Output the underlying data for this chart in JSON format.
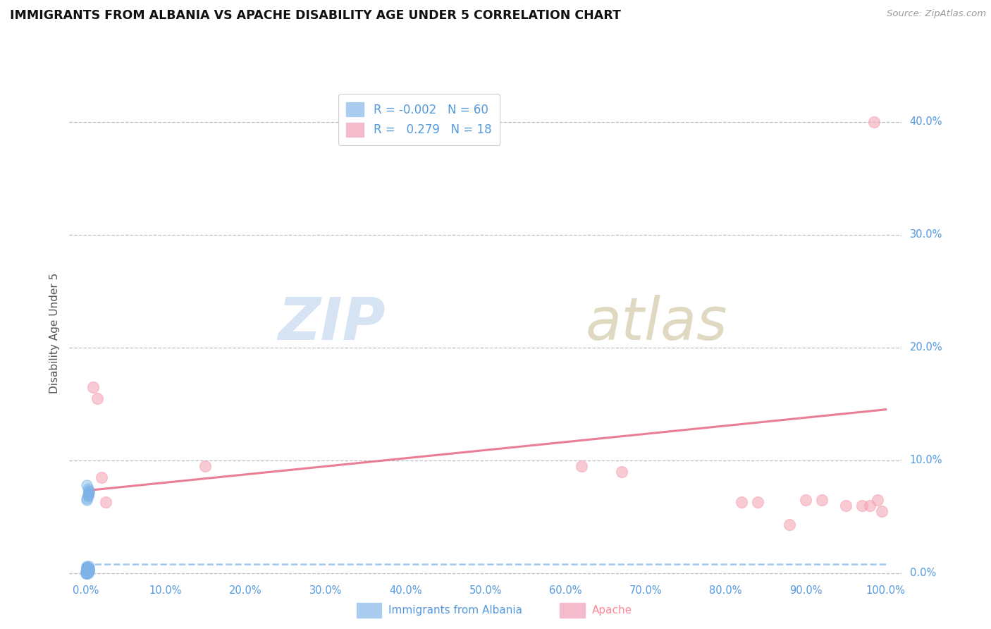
{
  "title": "IMMIGRANTS FROM ALBANIA VS APACHE DISABILITY AGE UNDER 5 CORRELATION CHART",
  "source": "Source: ZipAtlas.com",
  "ylabel": "Disability Age Under 5",
  "xlim": [
    -0.02,
    1.02
  ],
  "ylim": [
    -0.005,
    0.43
  ],
  "xticks": [
    0.0,
    0.1,
    0.2,
    0.3,
    0.4,
    0.5,
    0.6,
    0.7,
    0.8,
    0.9,
    1.0
  ],
  "xticklabels": [
    "0.0%",
    "10.0%",
    "20.0%",
    "30.0%",
    "40.0%",
    "50.0%",
    "60.0%",
    "70.0%",
    "80.0%",
    "90.0%",
    "100.0%"
  ],
  "yticks": [
    0.0,
    0.1,
    0.2,
    0.3,
    0.4
  ],
  "yticklabels": [
    "0.0%",
    "10.0%",
    "20.0%",
    "30.0%",
    "40.0%"
  ],
  "legend_r1": "-0.002",
  "legend_n1": "60",
  "legend_r2": "0.279",
  "legend_n2": "18",
  "blue_color": "#7EB3E8",
  "pink_color": "#F4A0B0",
  "trendline_blue_color": "#7EB3E8",
  "trendline_pink_color": "#E8708A",
  "blue_scatter_x": [
    0.002,
    0.003,
    0.004,
    0.003,
    0.002,
    0.004,
    0.003,
    0.002,
    0.003,
    0.004,
    0.002,
    0.003,
    0.004,
    0.003,
    0.002,
    0.003,
    0.002,
    0.003,
    0.004,
    0.002,
    0.003,
    0.002,
    0.003,
    0.004,
    0.002,
    0.003,
    0.004,
    0.002,
    0.003,
    0.002,
    0.003,
    0.004,
    0.002,
    0.003,
    0.002,
    0.003,
    0.004,
    0.002,
    0.003,
    0.004,
    0.002,
    0.003,
    0.002,
    0.003,
    0.004,
    0.002,
    0.003,
    0.002,
    0.003,
    0.004,
    0.001,
    0.002,
    0.003,
    0.001,
    0.002,
    0.001,
    0.002,
    0.003,
    0.001,
    0.002
  ],
  "blue_scatter_y": [
    0.078,
    0.075,
    0.071,
    0.068,
    0.065,
    0.072,
    0.069,
    0.066,
    0.07,
    0.073,
    0.005,
    0.003,
    0.006,
    0.004,
    0.002,
    0.005,
    0.003,
    0.004,
    0.002,
    0.006,
    0.003,
    0.005,
    0.002,
    0.004,
    0.003,
    0.005,
    0.002,
    0.004,
    0.003,
    0.005,
    0.002,
    0.003,
    0.004,
    0.002,
    0.003,
    0.002,
    0.003,
    0.004,
    0.002,
    0.003,
    0.001,
    0.002,
    0.003,
    0.001,
    0.002,
    0.001,
    0.002,
    0.003,
    0.001,
    0.002,
    0.001,
    0.0,
    0.001,
    0.0,
    0.001,
    0.0,
    0.001,
    0.0,
    0.001,
    0.0
  ],
  "pink_scatter_x": [
    0.01,
    0.015,
    0.02,
    0.025,
    0.15,
    0.62,
    0.67,
    0.82,
    0.84,
    0.88,
    0.9,
    0.92,
    0.95,
    0.97,
    0.98,
    0.985,
    0.99,
    0.995
  ],
  "pink_scatter_y": [
    0.165,
    0.155,
    0.085,
    0.063,
    0.095,
    0.095,
    0.09,
    0.063,
    0.063,
    0.043,
    0.065,
    0.065,
    0.06,
    0.06,
    0.06,
    0.4,
    0.065,
    0.055
  ],
  "trendline_pink_x0": 0.0,
  "trendline_pink_y0": 0.073,
  "trendline_pink_x1": 1.0,
  "trendline_pink_y1": 0.145,
  "trendline_blue_y": 0.008
}
